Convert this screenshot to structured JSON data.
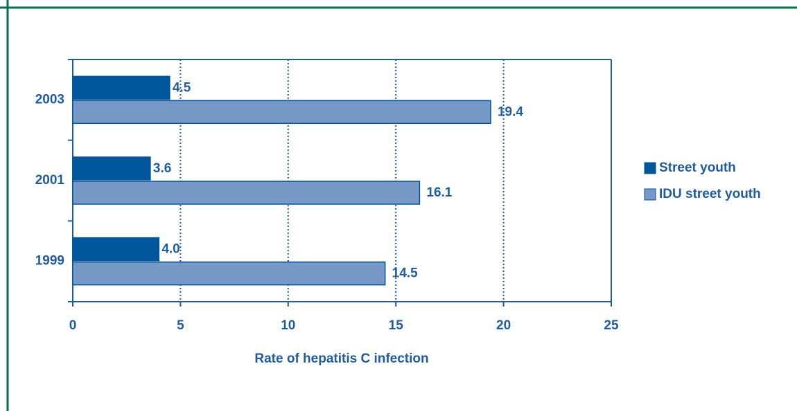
{
  "chart_data": {
    "type": "barh",
    "xlabel": "Rate of hepatitis C infection",
    "categories": [
      "1999",
      "2001",
      "2003"
    ],
    "series": [
      {
        "name": "Street youth",
        "color": "#00559b",
        "values": [
          4.0,
          3.6,
          4.5
        ],
        "value_labels": [
          "4.0",
          "3.6",
          "4.5"
        ]
      },
      {
        "name": "IDU street youth",
        "color": "#7899c8",
        "values": [
          14.5,
          16.1,
          19.4
        ],
        "value_labels": [
          "14.5",
          "16.1",
          "19.4"
        ]
      }
    ],
    "xlim": [
      0,
      25
    ],
    "xticks": [
      0,
      5,
      10,
      15,
      20,
      25
    ],
    "grid": true,
    "legend": "right"
  }
}
